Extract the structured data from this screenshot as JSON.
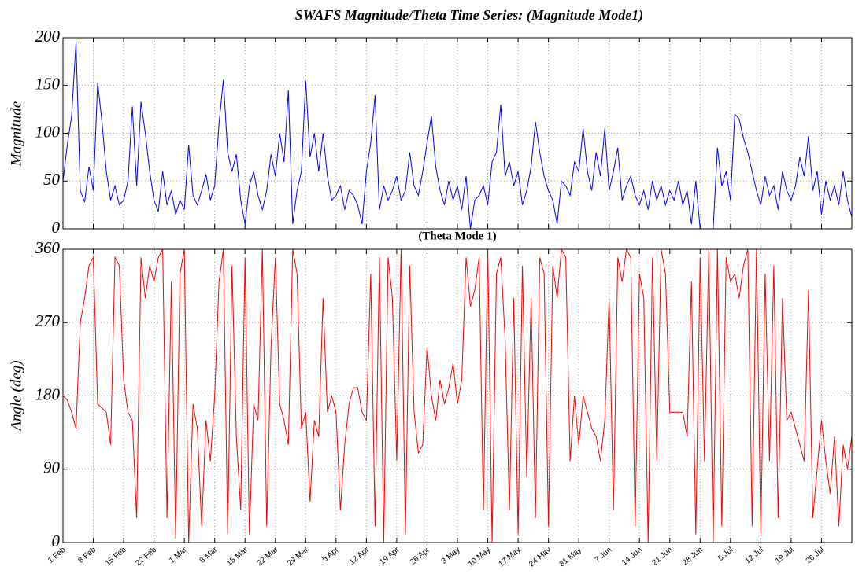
{
  "chart_data": [
    {
      "type": "line",
      "title": "SWAFS Magnitude/Theta Time Series: (Magnitude Mode1)",
      "y_label": "Magnitude",
      "ylim": [
        0,
        200
      ],
      "yticks": [
        0,
        50,
        100,
        150,
        200
      ],
      "grid": true,
      "series": [
        {
          "name": "Magnitude",
          "color": "#0000ff",
          "values": [
            50,
            88,
            118,
            195,
            40,
            28,
            65,
            40,
            153,
            112,
            60,
            30,
            45,
            25,
            30,
            50,
            128,
            45,
            133,
            100,
            60,
            30,
            18,
            60,
            25,
            40,
            15,
            30,
            20,
            88,
            35,
            25,
            40,
            57,
            30,
            45,
            110,
            156,
            80,
            60,
            78,
            30,
            5,
            45,
            60,
            35,
            20,
            40,
            78,
            55,
            100,
            70,
            145,
            5,
            40,
            60,
            155,
            75,
            100,
            60,
            100,
            55,
            30,
            35,
            45,
            20,
            40,
            35,
            25,
            5,
            60,
            90,
            140,
            20,
            45,
            30,
            40,
            55,
            30,
            40,
            80,
            45,
            35,
            60,
            90,
            118,
            65,
            40,
            25,
            50,
            30,
            45,
            20,
            55,
            0,
            30,
            35,
            45,
            25,
            70,
            80,
            130,
            55,
            70,
            45,
            60,
            25,
            40,
            65,
            112,
            80,
            55,
            40,
            30,
            5,
            50,
            45,
            35,
            70,
            60,
            105,
            60,
            40,
            80,
            55,
            105,
            40,
            60,
            85,
            30,
            45,
            55,
            35,
            25,
            40,
            20,
            50,
            30,
            45,
            25,
            40,
            30,
            50,
            25,
            40,
            5,
            50,
            0,
            0,
            0,
            0,
            85,
            45,
            60,
            30,
            120,
            115,
            95,
            80,
            60,
            40,
            25,
            55,
            35,
            45,
            20,
            60,
            40,
            30,
            45,
            75,
            55,
            97,
            40,
            60,
            15,
            50,
            30,
            45,
            25,
            60,
            30,
            12
          ]
        }
      ]
    },
    {
      "type": "line",
      "title": "(Theta Mode 1)",
      "y_label": "Angle (deg)",
      "ylim": [
        0,
        360
      ],
      "yticks": [
        0,
        90,
        180,
        270,
        360
      ],
      "grid": true,
      "categories": [
        "1 Feb",
        null,
        null,
        null,
        null,
        null,
        null,
        "8 Feb",
        null,
        null,
        null,
        null,
        null,
        null,
        "15 Feb",
        null,
        null,
        null,
        null,
        null,
        null,
        "22 Feb",
        null,
        null,
        null,
        null,
        null,
        null,
        "1 Mar",
        null,
        null,
        null,
        null,
        null,
        null,
        "8 Mar",
        null,
        null,
        null,
        null,
        null,
        null,
        "15 Mar",
        null,
        null,
        null,
        null,
        null,
        null,
        "22 Mar",
        null,
        null,
        null,
        null,
        null,
        null,
        "29 Mar",
        null,
        null,
        null,
        null,
        null,
        null,
        "5 Apr",
        null,
        null,
        null,
        null,
        null,
        null,
        "12 Apr",
        null,
        null,
        null,
        null,
        null,
        null,
        "19 Apr",
        null,
        null,
        null,
        null,
        null,
        null,
        "26 Apr",
        null,
        null,
        null,
        null,
        null,
        null,
        "3 May",
        null,
        null,
        null,
        null,
        null,
        null,
        "10 May",
        null,
        null,
        null,
        null,
        null,
        null,
        "17 May",
        null,
        null,
        null,
        null,
        null,
        null,
        "24 May",
        null,
        null,
        null,
        null,
        null,
        null,
        "31 May",
        null,
        null,
        null,
        null,
        null,
        null,
        "7 Jun",
        null,
        null,
        null,
        null,
        null,
        null,
        "14 Jun",
        null,
        null,
        null,
        null,
        null,
        null,
        "21 Jun",
        null,
        null,
        null,
        null,
        null,
        null,
        "28 Jun",
        null,
        null,
        null,
        null,
        null,
        null,
        "5 Jul",
        null,
        null,
        null,
        null,
        null,
        null,
        "12 Jul",
        null,
        null,
        null,
        null,
        null,
        null,
        "19 Jul",
        null,
        null,
        null,
        null,
        null,
        null,
        "26 Jul",
        null,
        null,
        null,
        null,
        null,
        null,
        null
      ],
      "series": [
        {
          "name": "Theta",
          "color": "#ff0000",
          "values": [
            180,
            175,
            160,
            140,
            270,
            300,
            340,
            350,
            170,
            165,
            160,
            120,
            350,
            340,
            200,
            160,
            150,
            30,
            350,
            300,
            340,
            320,
            350,
            360,
            30,
            320,
            5,
            330,
            360,
            0,
            170,
            140,
            20,
            150,
            100,
            180,
            320,
            360,
            10,
            340,
            130,
            40,
            350,
            10,
            170,
            150,
            360,
            20,
            240,
            350,
            170,
            150,
            120,
            360,
            330,
            140,
            160,
            50,
            150,
            130,
            300,
            160,
            180,
            160,
            40,
            120,
            170,
            190,
            190,
            160,
            150,
            330,
            20,
            350,
            0,
            350,
            300,
            100,
            360,
            10,
            340,
            160,
            110,
            120,
            240,
            180,
            150,
            200,
            170,
            190,
            220,
            170,
            200,
            350,
            290,
            310,
            350,
            40,
            360,
            0,
            330,
            350,
            250,
            40,
            300,
            10,
            340,
            80,
            300,
            30,
            350,
            330,
            20,
            340,
            300,
            360,
            350,
            100,
            180,
            120,
            180,
            160,
            140,
            130,
            100,
            150,
            300,
            40,
            350,
            320,
            360,
            350,
            20,
            330,
            300,
            0,
            350,
            100,
            360,
            330,
            160,
            160,
            160,
            160,
            130,
            320,
            10,
            350,
            100,
            360,
            0,
            360,
            20,
            350,
            320,
            330,
            300,
            340,
            360,
            20,
            360,
            10,
            330,
            100,
            340,
            30,
            300,
            150,
            160,
            140,
            120,
            100,
            310,
            30,
            90,
            150,
            100,
            60,
            130,
            20,
            120,
            90,
            130
          ]
        }
      ]
    }
  ]
}
